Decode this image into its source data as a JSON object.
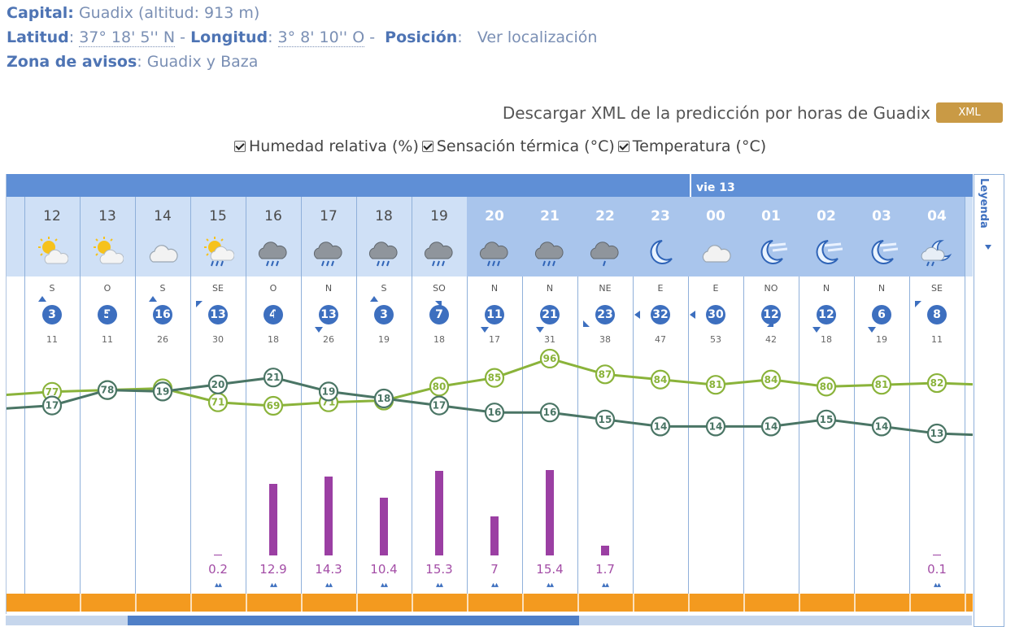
{
  "location": {
    "capital_label": "Capital:",
    "capital_value": "Guadix (altitud: 913 m)",
    "lat_label": "Latitud",
    "lat_value": "37° 18' 5'' N",
    "lon_label": "Longitud",
    "lon_value": "3° 8' 10'' O",
    "pos_label": "Posición",
    "pos_link": "Ver localización",
    "zone_label": "Zona de avisos",
    "zone_value": "Guadix y Baza"
  },
  "download": {
    "text": "Descargar XML de la predicción por horas de Guadix",
    "button": "XML"
  },
  "toggles": [
    "Humedad relativa (%)",
    "Sensación térmica (°C)",
    "Temperatura (°C)"
  ],
  "day_label": "vie 13",
  "legend_label": "Leyenda",
  "colors": {
    "humidity_line": "#8ab33a",
    "temperature_line": "#4a7565",
    "precip_bar": "#9b3fa3",
    "top_bar": "#5f8fd6",
    "bottom_bar": "#f39a1f"
  },
  "hours": [
    {
      "h": "12",
      "icon": "sun-cloud-icon",
      "dark": false,
      "dir": "S",
      "wind": "3",
      "arrow": "up",
      "gust": "11",
      "hum": 77,
      "temp": 17,
      "precip": null
    },
    {
      "h": "13",
      "icon": "sun-cloud-icon",
      "dark": false,
      "dir": "O",
      "wind": "5",
      "arrow": "right",
      "gust": "11",
      "hum": 78,
      "temp": 78,
      "precip": null
    },
    {
      "h": "14",
      "icon": "cloud-icon",
      "dark": false,
      "dir": "S",
      "wind": "16",
      "arrow": "up",
      "gust": "26",
      "hum": 79,
      "temp": 19,
      "precip": null
    },
    {
      "h": "15",
      "icon": "sun-rain-icon",
      "dark": false,
      "dir": "SE",
      "wind": "13",
      "arrow": "up-left",
      "gust": "30",
      "hum": 71,
      "temp": 20,
      "precip": "0.2"
    },
    {
      "h": "16",
      "icon": "storm-rain-icon",
      "dark": false,
      "dir": "O",
      "wind": "4",
      "arrow": "right",
      "gust": "18",
      "hum": 69,
      "temp": 21,
      "precip": "12.9"
    },
    {
      "h": "17",
      "icon": "storm-rain-icon",
      "dark": false,
      "dir": "N",
      "wind": "13",
      "arrow": "down",
      "gust": "26",
      "hum": 71,
      "temp": 19,
      "precip": "14.3"
    },
    {
      "h": "18",
      "icon": "storm-rain-icon",
      "dark": false,
      "dir": "S",
      "wind": "3",
      "arrow": "up",
      "gust": "19",
      "hum": 72,
      "temp": 18,
      "precip": "10.4"
    },
    {
      "h": "19",
      "icon": "storm-rain-icon",
      "dark": false,
      "dir": "SO",
      "wind": "7",
      "arrow": "up-right",
      "gust": "18",
      "hum": 80,
      "temp": 17,
      "precip": "15.3"
    },
    {
      "h": "20",
      "icon": "storm-rain-icon",
      "dark": true,
      "dir": "N",
      "wind": "11",
      "arrow": "down",
      "gust": "17",
      "hum": 85,
      "temp": 16,
      "precip": "7"
    },
    {
      "h": "21",
      "icon": "storm-rain-icon",
      "dark": true,
      "dir": "N",
      "wind": "21",
      "arrow": "down",
      "gust": "31",
      "hum": 96,
      "temp": 16,
      "precip": "15.4"
    },
    {
      "h": "22",
      "icon": "storm-icon",
      "dark": true,
      "dir": "NE",
      "wind": "23",
      "arrow": "down-left",
      "gust": "38",
      "hum": 87,
      "temp": 15,
      "precip": "1.7"
    },
    {
      "h": "23",
      "icon": "moon-icon",
      "dark": true,
      "dir": "E",
      "wind": "32",
      "arrow": "left",
      "gust": "47",
      "hum": 84,
      "temp": 14,
      "precip": null
    },
    {
      "h": "00",
      "icon": "cloud-icon",
      "dark": true,
      "dir": "E",
      "wind": "30",
      "arrow": "left",
      "gust": "53",
      "hum": 81,
      "temp": 14,
      "precip": null
    },
    {
      "h": "01",
      "icon": "moon-fog-icon",
      "dark": true,
      "dir": "NO",
      "wind": "12",
      "arrow": "down-right",
      "gust": "42",
      "hum": 84,
      "temp": 14,
      "precip": null
    },
    {
      "h": "02",
      "icon": "moon-fog-icon",
      "dark": true,
      "dir": "N",
      "wind": "12",
      "arrow": "down",
      "gust": "18",
      "hum": 80,
      "temp": 15,
      "precip": null
    },
    {
      "h": "03",
      "icon": "moon-fog-icon",
      "dark": true,
      "dir": "N",
      "wind": "6",
      "arrow": "down",
      "gust": "19",
      "hum": 81,
      "temp": 14,
      "precip": null
    },
    {
      "h": "04",
      "icon": "moon-rain-icon",
      "dark": true,
      "dir": "SE",
      "wind": "8",
      "arrow": "up-left",
      "gust": "11",
      "hum": 82,
      "temp": 13,
      "precip": "0.1"
    }
  ],
  "temp_series": [
    17,
    78,
    19,
    20,
    21,
    19,
    18,
    17,
    16,
    16,
    15,
    14,
    14,
    14,
    15,
    14,
    13
  ],
  "hum_series": [
    77,
    78,
    79,
    71,
    69,
    71,
    72,
    80,
    85,
    96,
    87,
    84,
    81,
    84,
    80,
    81,
    82
  ]
}
